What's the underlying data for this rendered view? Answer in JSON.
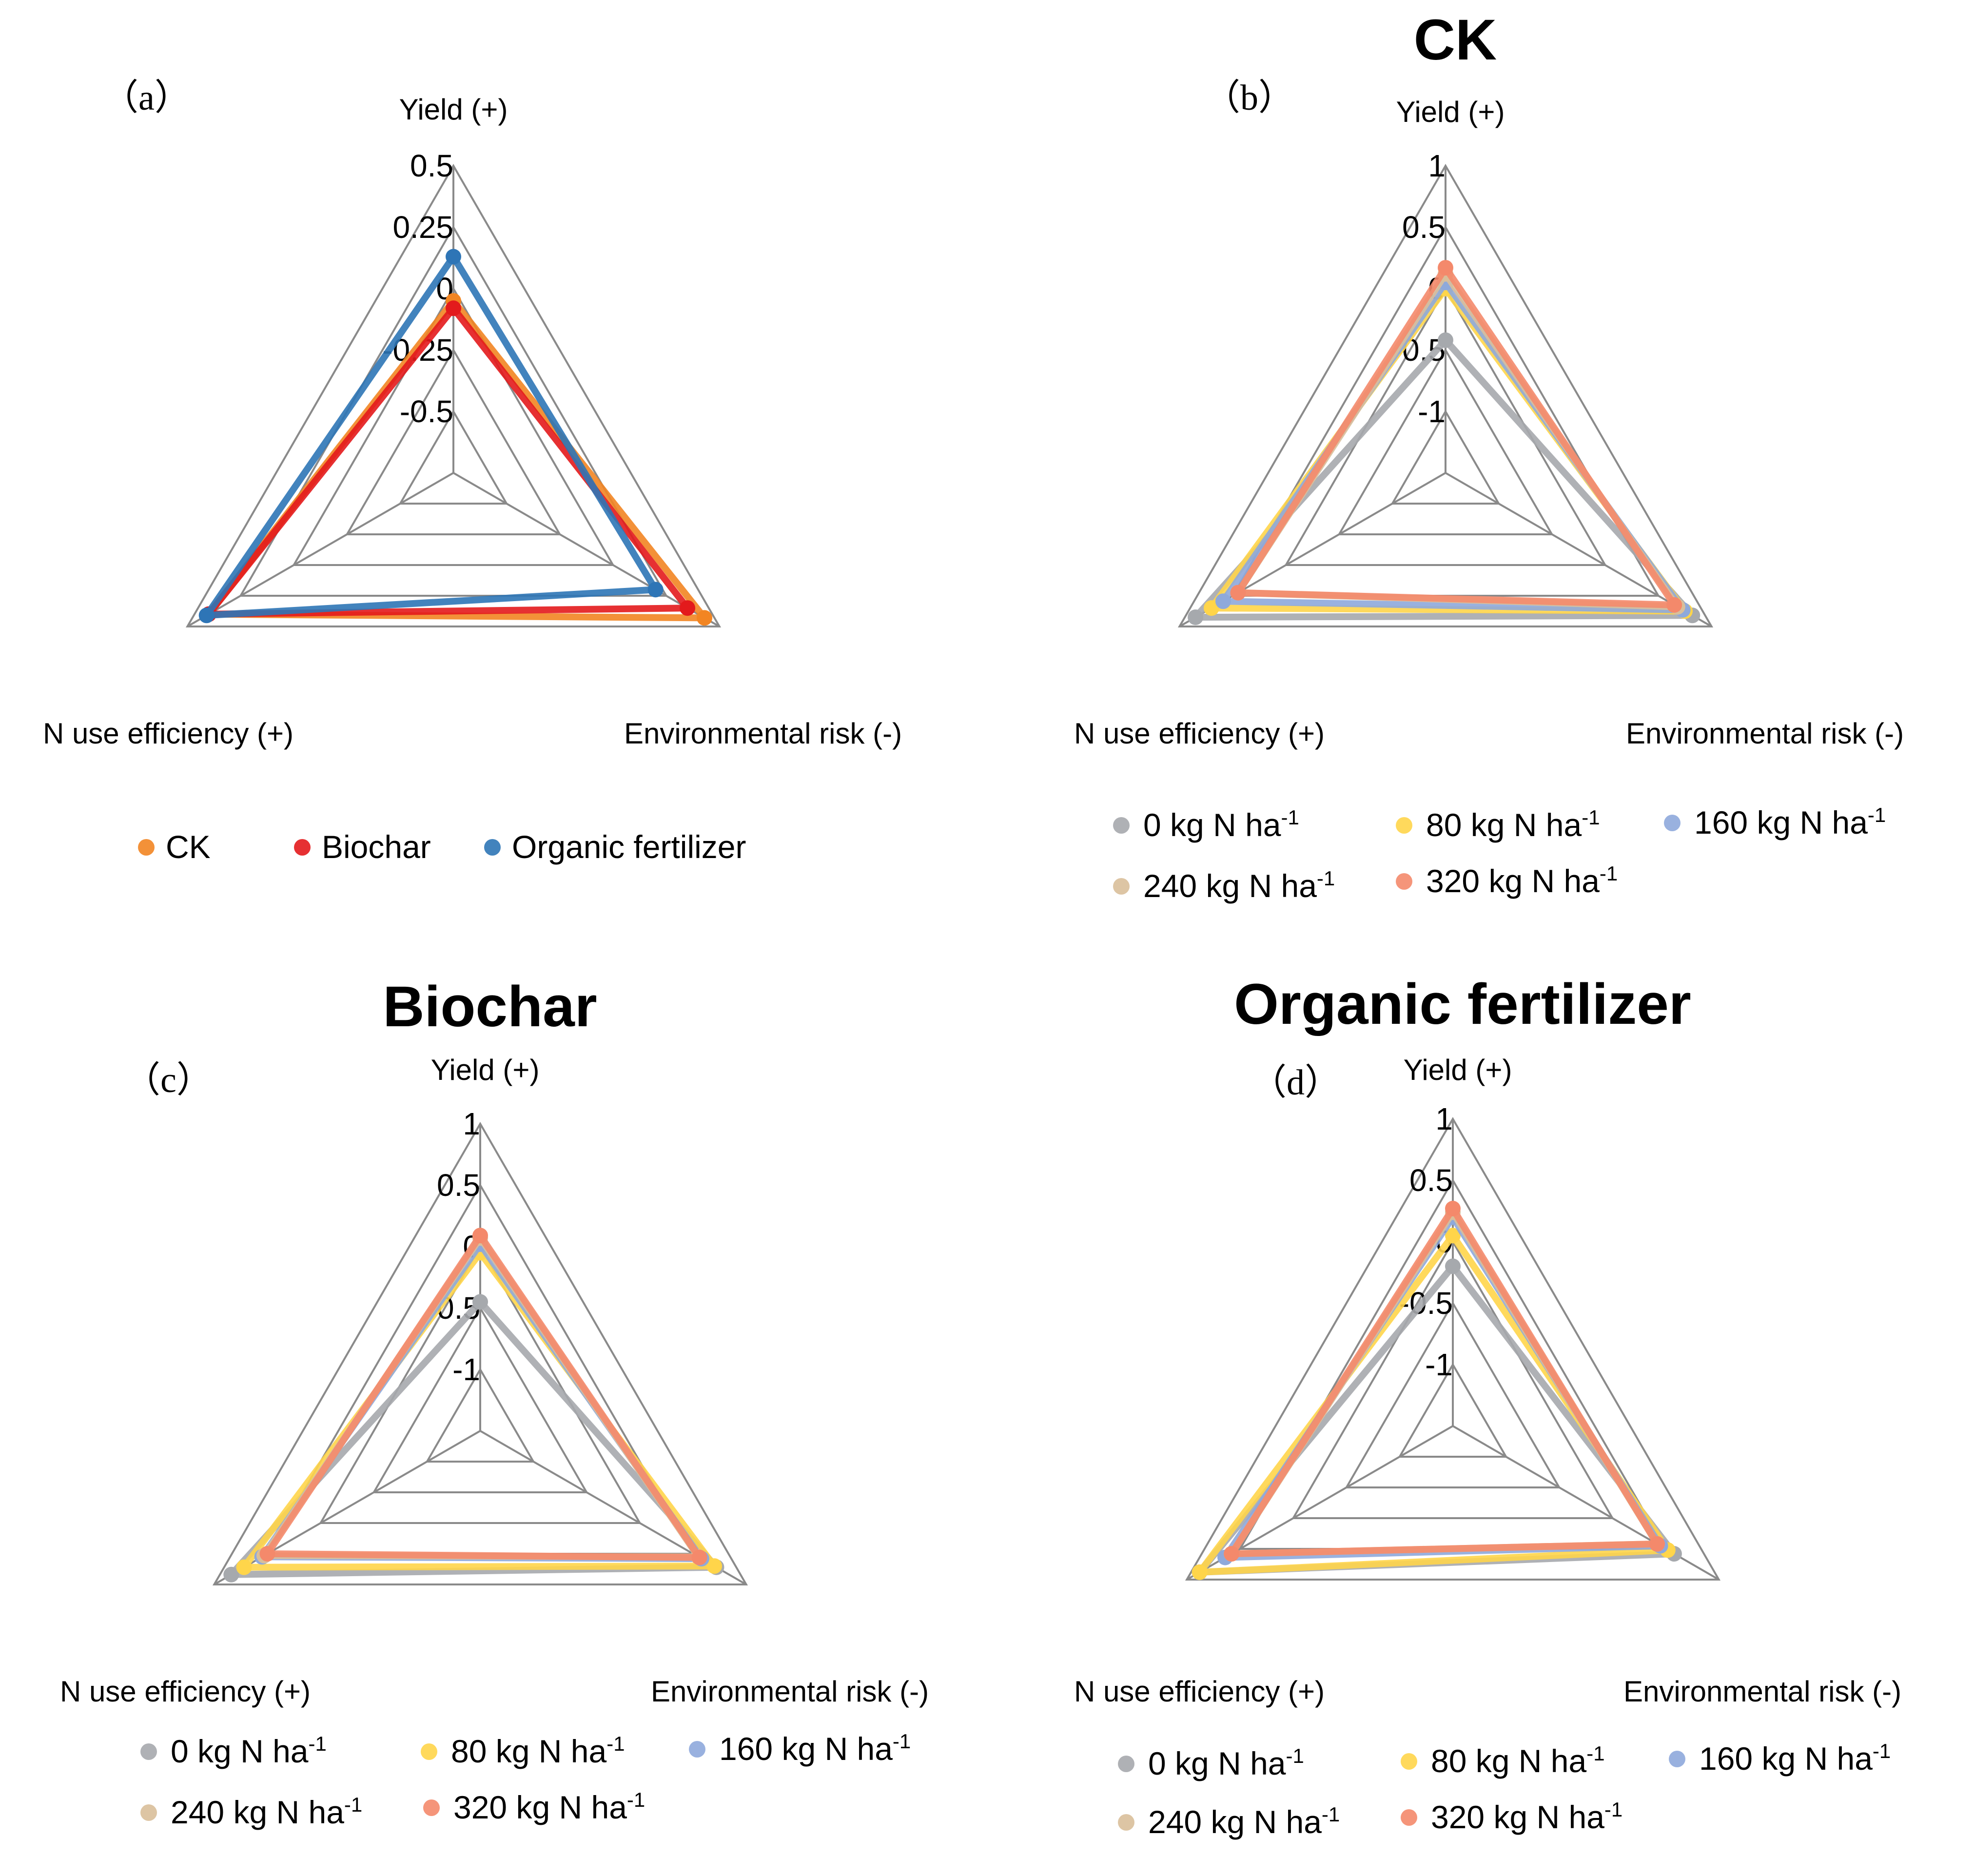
{
  "colors": {
    "ck": "#F28522",
    "biochar": "#E31A1C",
    "organic": "#2E75B6",
    "n0": "#A6A9AD",
    "n80": "#FFD54A",
    "n160": "#8EA9DB",
    "n240": "#D9BF9A",
    "n320": "#F4896B",
    "grid": "#8A8A8A"
  },
  "chart_data": [
    {
      "type": "radar",
      "panel_label": "（a）",
      "title": "",
      "axes": [
        "Yield (+)",
        "Environmental risk  (-)",
        "N use efficiency (+)"
      ],
      "ticks": [
        "0.5",
        "0.25",
        "0",
        "-0.25",
        "-0.5"
      ],
      "range": [
        -0.75,
        0.5
      ],
      "series": [
        {
          "name": "CK",
          "color_key": "ck",
          "values": [
            -0.05,
            0.43,
            0.4
          ]
        },
        {
          "name": "Biochar",
          "color_key": "biochar",
          "values": [
            -0.08,
            0.35,
            0.4
          ]
        },
        {
          "name": "Organic fertilizer",
          "color_key": "organic",
          "values": [
            0.13,
            0.2,
            0.41
          ]
        }
      ]
    },
    {
      "type": "radar",
      "panel_label": "（b）",
      "title": "CK",
      "axes": [
        "Yield (+)",
        "Environmental risk  (-)",
        "N use efficiency (+)"
      ],
      "ticks": [
        "1",
        "0.5",
        "0",
        "-0.5",
        "-1"
      ],
      "range": [
        -1.5,
        1
      ],
      "series": [
        {
          "name": "0 kg N ha-1",
          "color_key": "n0",
          "values": [
            -0.42,
            0.82,
            0.85
          ]
        },
        {
          "name": "80 kg N ha-1",
          "color_key": "n80",
          "values": [
            0.0,
            0.75,
            0.7
          ]
        },
        {
          "name": "160 kg N ha-1",
          "color_key": "n160",
          "values": [
            0.05,
            0.73,
            0.59
          ]
        },
        {
          "name": "240 kg N ha-1",
          "color_key": "n240",
          "values": [
            0.12,
            0.68,
            0.45
          ]
        },
        {
          "name": "320 kg N ha-1",
          "color_key": "n320",
          "values": [
            0.17,
            0.65,
            0.45
          ]
        }
      ]
    },
    {
      "type": "radar",
      "panel_label": "（c）",
      "title": "Biochar",
      "axes": [
        "Yield (+)",
        "Environmental risk  (-)",
        "N use efficiency (+)"
      ],
      "ticks": [
        "1",
        "0.5",
        "0",
        "-0.5",
        "-1"
      ],
      "range": [
        -1.5,
        1
      ],
      "series": [
        {
          "name": "0 kg N ha-1",
          "color_key": "n0",
          "values": [
            -0.45,
            0.72,
            0.84
          ]
        },
        {
          "name": "80 kg N ha-1",
          "color_key": "n80",
          "values": [
            -0.05,
            0.7,
            0.72
          ]
        },
        {
          "name": "160 kg N ha-1",
          "color_key": "n160",
          "values": [
            0.02,
            0.58,
            0.55
          ]
        },
        {
          "name": "240 kg N ha-1",
          "color_key": "n240",
          "values": [
            0.07,
            0.55,
            0.53
          ]
        },
        {
          "name": "320 kg N ha-1",
          "color_key": "n320",
          "values": [
            0.09,
            0.56,
            0.5
          ]
        }
      ]
    },
    {
      "type": "radar",
      "panel_label": "（d）",
      "title": "Organic fertilizer",
      "axes": [
        "Yield (+)",
        "Environmental risk  (-)",
        "N use efficiency (+)"
      ],
      "ticks": [
        "1",
        "0.5",
        "0",
        "-0.5",
        "-1"
      ],
      "range": [
        -1.5,
        1
      ],
      "series": [
        {
          "name": "0 kg N ha-1",
          "color_key": "n0",
          "values": [
            -0.2,
            0.58,
            0.88
          ]
        },
        {
          "name": "80 kg N ha-1",
          "color_key": "n80",
          "values": [
            0.05,
            0.52,
            0.88
          ]
        },
        {
          "name": "160 kg N ha-1",
          "color_key": "n160",
          "values": [
            0.2,
            0.45,
            0.64
          ]
        },
        {
          "name": "240 kg N ha-1",
          "color_key": "n240",
          "values": [
            0.24,
            0.42,
            0.58
          ]
        },
        {
          "name": "320 kg N ha-1",
          "color_key": "n320",
          "values": [
            0.27,
            0.42,
            0.58
          ]
        }
      ]
    }
  ]
}
